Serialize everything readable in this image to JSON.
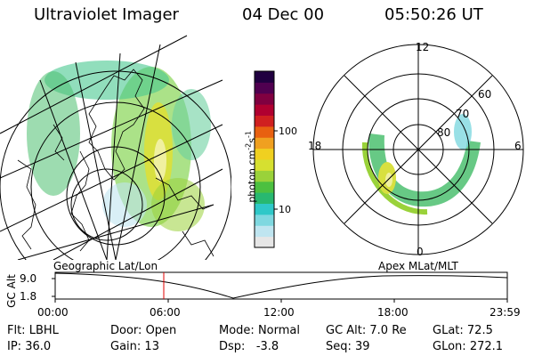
{
  "header": {
    "instrument": "Ultraviolet Imager",
    "date": "04 Dec 00",
    "time": "05:50:26 UT"
  },
  "colorbar": {
    "unit_label": "photon cm",
    "unit_exp1": "-2",
    "unit_mid": "s",
    "unit_exp2": "-1",
    "ticks": [
      "100",
      "10"
    ],
    "colors": [
      "#e6e6e6",
      "#bfe5f0",
      "#7fd8e0",
      "#2fc8c8",
      "#28b870",
      "#4cc040",
      "#9ad23a",
      "#d6e030",
      "#f0d020",
      "#f0a020",
      "#e86010",
      "#d02020",
      "#b00030",
      "#800040",
      "#500050",
      "#200040"
    ]
  },
  "polar_map": {
    "labels": {
      "top": "12",
      "bottom": "0",
      "left": "18",
      "right": "6"
    },
    "lat_rings": [
      "60",
      "70",
      "80"
    ]
  },
  "strip": {
    "axis_title": "GC Alt",
    "y_ticks": [
      "9.0",
      "1.8"
    ],
    "left_caption": "Geographic Lat/Lon",
    "right_caption": "Apex  MLat/MLT",
    "x_ticks": [
      "00:00",
      "06:00",
      "12:00",
      "18:00",
      "23:59"
    ],
    "marker_color": "#e00000"
  },
  "info": {
    "row1": [
      {
        "label": "Flt:",
        "value": "LBHL"
      },
      {
        "label": "Door:",
        "value": "Open"
      },
      {
        "label": "Mode:",
        "value": "Normal"
      },
      {
        "label": "GC Alt:",
        "value": "7.0 Re"
      },
      {
        "label": "GLat:",
        "value": "72.5"
      }
    ],
    "row2": [
      {
        "label": "IP:",
        "value": "36.0"
      },
      {
        "label": "Gain:",
        "value": "13"
      },
      {
        "label": "Dsp:",
        "value": "  -3.8"
      },
      {
        "label": "Seq:",
        "value": "39"
      },
      {
        "label": "GLon:",
        "value": "272.1"
      }
    ]
  }
}
